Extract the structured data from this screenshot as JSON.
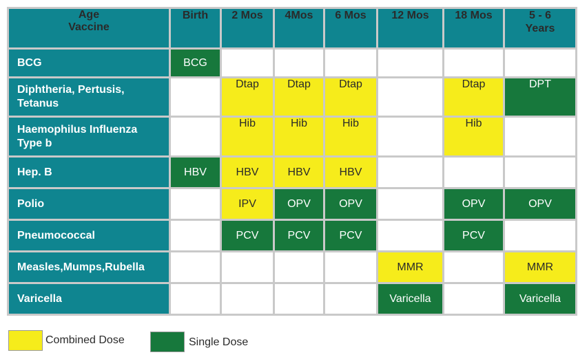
{
  "header": {
    "corner_line1": "Age",
    "corner_line2": "Vaccine",
    "columns": [
      {
        "line1": "Birth",
        "line2": ""
      },
      {
        "line1": "2 Mos",
        "line2": ""
      },
      {
        "line1": "4Mos",
        "line2": ""
      },
      {
        "line1": "6 Mos",
        "line2": ""
      },
      {
        "line1": "12 Mos",
        "line2": ""
      },
      {
        "line1": "18 Mos",
        "line2": ""
      },
      {
        "line1": "5 - 6",
        "line2": "Years"
      }
    ]
  },
  "rows": [
    {
      "line1": "BCG",
      "line2": "",
      "cells": [
        {
          "text": "BCG",
          "type": "single"
        },
        {
          "text": "",
          "type": "empty"
        },
        {
          "text": "",
          "type": "empty"
        },
        {
          "text": "",
          "type": "empty"
        },
        {
          "text": "",
          "type": "empty"
        },
        {
          "text": "",
          "type": "empty"
        },
        {
          "text": "",
          "type": "empty"
        }
      ]
    },
    {
      "line1": "Diphtheria, Pertusis,",
      "line2": "Tetanus",
      "cells": [
        {
          "text": "",
          "type": "empty"
        },
        {
          "text": "Dtap",
          "type": "combined"
        },
        {
          "text": "Dtap",
          "type": "combined"
        },
        {
          "text": "Dtap",
          "type": "combined"
        },
        {
          "text": "",
          "type": "empty"
        },
        {
          "text": "Dtap",
          "type": "combined"
        },
        {
          "text": "DPT",
          "type": "single"
        }
      ]
    },
    {
      "line1": "Haemophilus Influenza",
      "line2": "Type b",
      "cells": [
        {
          "text": "",
          "type": "empty"
        },
        {
          "text": "Hib",
          "type": "combined"
        },
        {
          "text": "Hib",
          "type": "combined"
        },
        {
          "text": "Hib",
          "type": "combined"
        },
        {
          "text": "",
          "type": "empty"
        },
        {
          "text": "Hib",
          "type": "combined"
        },
        {
          "text": "",
          "type": "empty"
        }
      ]
    },
    {
      "line1": "Hep. B",
      "line2": "",
      "cells": [
        {
          "text": "HBV",
          "type": "single"
        },
        {
          "text": "HBV",
          "type": "combined"
        },
        {
          "text": "HBV",
          "type": "combined"
        },
        {
          "text": "HBV",
          "type": "combined"
        },
        {
          "text": "",
          "type": "empty"
        },
        {
          "text": "",
          "type": "empty"
        },
        {
          "text": "",
          "type": "empty"
        }
      ]
    },
    {
      "line1": "Polio",
      "line2": "",
      "cells": [
        {
          "text": "",
          "type": "empty"
        },
        {
          "text": "IPV",
          "type": "combined"
        },
        {
          "text": "OPV",
          "type": "single"
        },
        {
          "text": "OPV",
          "type": "single"
        },
        {
          "text": "",
          "type": "empty"
        },
        {
          "text": "OPV",
          "type": "single"
        },
        {
          "text": "OPV",
          "type": "single"
        }
      ]
    },
    {
      "line1": "Pneumococcal",
      "line2": "",
      "cells": [
        {
          "text": "",
          "type": "empty"
        },
        {
          "text": "PCV",
          "type": "single"
        },
        {
          "text": "PCV",
          "type": "single"
        },
        {
          "text": "PCV",
          "type": "single"
        },
        {
          "text": "",
          "type": "empty"
        },
        {
          "text": "PCV",
          "type": "single"
        },
        {
          "text": "",
          "type": "empty"
        }
      ]
    },
    {
      "line1": "Measles,Mumps,Rubella",
      "line2": "",
      "cells": [
        {
          "text": "",
          "type": "empty"
        },
        {
          "text": "",
          "type": "empty"
        },
        {
          "text": "",
          "type": "empty"
        },
        {
          "text": "",
          "type": "empty"
        },
        {
          "text": "MMR",
          "type": "combined"
        },
        {
          "text": "",
          "type": "empty"
        },
        {
          "text": "MMR",
          "type": "combined"
        }
      ]
    },
    {
      "line1": "Varicella",
      "line2": "",
      "cells": [
        {
          "text": "",
          "type": "empty"
        },
        {
          "text": "",
          "type": "empty"
        },
        {
          "text": "",
          "type": "empty"
        },
        {
          "text": "",
          "type": "empty"
        },
        {
          "text": "Varicella",
          "type": "single"
        },
        {
          "text": "",
          "type": "empty"
        },
        {
          "text": "Varicella",
          "type": "single"
        }
      ]
    }
  ],
  "legend": {
    "combined_label": "Combined Dose",
    "single_label": "Single Dose"
  },
  "colors": {
    "header_teal": "#0f8590",
    "combined_yellow": "#f6ec1b",
    "single_green": "#17783c",
    "grid_gray": "#c9c9c9"
  }
}
